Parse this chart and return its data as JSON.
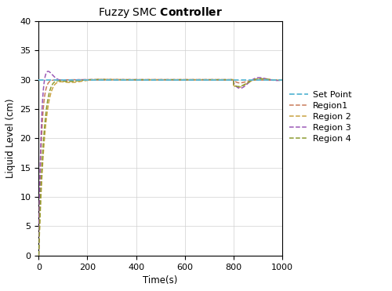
{
  "title_normal": "Fuzzy SMC ",
  "title_bold": "Controller",
  "xlabel": "Time(s)",
  "ylabel": "Liquid Level (cm)",
  "xlim": [
    0,
    1000
  ],
  "ylim": [
    0,
    40
  ],
  "xticks": [
    0,
    200,
    400,
    600,
    800,
    1000
  ],
  "yticks": [
    0,
    5,
    10,
    15,
    20,
    25,
    30,
    35,
    40
  ],
  "sp": 30,
  "setpoint_color": "#5BB8D4",
  "region1_color": "#C97B5A",
  "region2_color": "#C9A240",
  "region3_color": "#9B59B6",
  "region4_color": "#8B9B30",
  "disturbance_t": 800,
  "background_color": "#ffffff",
  "figsize": [
    5.0,
    3.71
  ],
  "dpi": 100
}
